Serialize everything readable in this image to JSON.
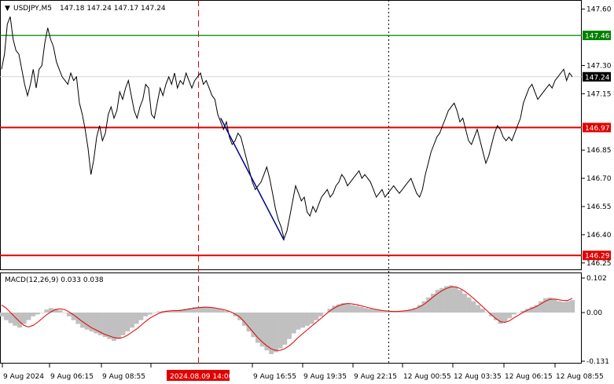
{
  "header": {
    "symbol": "USDJPY,M5",
    "ohlc": "147.18 147.24 147.17 147.24"
  },
  "macd_header": "MACD(12,26,9) 0.033 0.038",
  "colors": {
    "price_line": "#000000",
    "green_level": "#008000",
    "red_level": "#e00000",
    "trend_line": "#00008b",
    "macd_hist": "#c0c0c0",
    "macd_signal": "#e00000",
    "vline_dashed_red": "#e00000",
    "vline_dotted": "#000000",
    "current_tag_bg": "#000000"
  },
  "chart_data": [
    {
      "type": "line",
      "title": "USDJPY,M5",
      "ylim": [
        146.22,
        147.64
      ],
      "y_ticks": [
        "147.60",
        "147.30",
        "147.15",
        "146.85",
        "146.70",
        "146.55",
        "146.40",
        "146.25"
      ],
      "x_ticks": [
        "9 Aug 2024",
        "9 Aug 06:15",
        "9 Aug 08:55",
        "",
        "9 Aug 16:55",
        "9 Aug 19:35",
        "9 Aug 22:15",
        "12 Aug 00:55",
        "12 Aug 03:35",
        "12 Aug 06:15",
        "12 Aug 08:55"
      ],
      "x_ticks_note": "tick at 9 Aug 14:15 partly hidden by highlighted label",
      "highlight_label": "2024.08.09 14:00",
      "horizontal_levels": [
        {
          "value": 147.46,
          "label": "147.46",
          "color": "green"
        },
        {
          "value": 146.97,
          "label": "146.97",
          "color": "red"
        },
        {
          "value": 146.29,
          "label": "146.29",
          "color": "red"
        }
      ],
      "current_price": {
        "value": 147.24,
        "label": "147.24"
      },
      "series": [
        {
          "values": [
            147.28,
            147.36,
            147.52,
            147.56,
            147.44,
            147.38,
            147.36,
            147.28,
            147.2,
            147.14,
            147.2,
            147.28,
            147.18,
            147.28,
            147.3,
            147.42,
            147.5,
            147.44,
            147.4,
            147.32,
            147.28,
            147.24,
            147.22,
            147.2,
            147.26,
            147.22,
            147.24,
            147.1,
            147.04,
            146.96,
            146.86,
            146.72,
            146.8,
            146.92,
            146.98,
            146.9,
            146.94,
            147.04,
            147.08,
            147.02,
            147.06,
            147.16,
            147.12,
            147.18,
            147.22,
            147.14,
            147.06,
            147.02,
            147.08,
            147.12,
            147.2,
            147.18,
            147.04,
            147.02,
            147.1,
            147.18,
            147.14,
            147.2,
            147.24,
            147.2,
            147.26,
            147.18,
            147.22,
            147.2,
            147.26,
            147.22,
            147.18,
            147.22,
            147.24,
            147.26,
            147.2,
            147.22,
            147.18,
            147.14,
            147.12,
            147.04,
            147.0,
            146.96,
            147.0,
            146.92,
            146.88,
            146.9,
            146.94,
            146.92,
            146.86,
            146.8,
            146.74,
            146.68,
            146.64,
            146.66,
            146.68,
            146.72,
            146.76,
            146.7,
            146.62,
            146.54,
            146.48,
            146.44,
            146.38,
            146.42,
            146.5,
            146.58,
            146.66,
            146.62,
            146.58,
            146.6,
            146.52,
            146.5,
            146.55,
            146.52,
            146.56,
            146.6,
            146.62,
            146.64,
            146.6,
            146.62,
            146.66,
            146.68,
            146.72,
            146.7,
            146.66,
            146.68,
            146.7,
            146.72,
            146.74,
            146.7,
            146.72,
            146.7,
            146.68,
            146.64,
            146.6,
            146.62,
            146.64,
            146.6,
            146.62,
            146.64,
            146.66,
            146.64,
            146.62,
            146.64,
            146.66,
            146.68,
            146.7,
            146.66,
            146.62,
            146.6,
            146.64,
            146.72,
            146.78,
            146.84,
            146.88,
            146.92,
            146.94,
            146.98,
            147.02,
            147.06,
            147.08,
            147.1,
            147.06,
            147.0,
            147.02,
            146.96,
            146.9,
            146.88,
            146.92,
            146.96,
            146.9,
            146.84,
            146.78,
            146.82,
            146.88,
            146.94,
            146.98,
            146.96,
            146.92,
            146.9,
            146.92,
            146.9,
            146.94,
            146.98,
            147.02,
            147.1,
            147.14,
            147.18,
            147.2,
            147.16,
            147.12,
            147.14,
            147.16,
            147.18,
            147.2,
            147.18,
            147.22,
            147.24,
            147.26,
            147.28,
            147.22,
            147.26,
            147.24
          ],
          "note": "approximate M5 close path, 9 Aug 2024 to 12 Aug 08:55"
        }
      ],
      "trend_line": {
        "from": {
          "index": 76,
          "value": 147.02
        },
        "to": {
          "index": 98,
          "value": 146.37
        }
      }
    },
    {
      "type": "bar",
      "title": "MACD(12,26,9)",
      "ylim": [
        -0.131,
        0.102
      ],
      "y_ticks": [
        "0.102",
        "0.00",
        "-0.131"
      ],
      "series": [
        {
          "name": "MACD",
          "values": [
            -0.01,
            -0.02,
            -0.028,
            -0.035,
            -0.04,
            -0.03,
            -0.02,
            -0.01,
            -0.005,
            0.0,
            0.008,
            0.012,
            0.01,
            0.006,
            0.0,
            -0.01,
            -0.02,
            -0.03,
            -0.04,
            -0.045,
            -0.05,
            -0.055,
            -0.06,
            -0.065,
            -0.07,
            -0.075,
            -0.07,
            -0.06,
            -0.05,
            -0.04,
            -0.03,
            -0.02,
            -0.01,
            -0.005,
            0.0,
            0.003,
            0.004,
            0.005,
            0.004,
            0.006,
            0.008,
            0.01,
            0.012,
            0.014,
            0.015,
            0.016,
            0.015,
            0.012,
            0.01,
            0.008,
            0.004,
            0.0,
            -0.01,
            -0.02,
            -0.035,
            -0.05,
            -0.065,
            -0.08,
            -0.09,
            -0.1,
            -0.11,
            -0.105,
            -0.095,
            -0.085,
            -0.07,
            -0.055,
            -0.045,
            -0.04,
            -0.035,
            -0.03,
            -0.02,
            -0.01,
            0.0,
            0.01,
            0.018,
            0.022,
            0.025,
            0.024,
            0.02,
            0.018,
            0.015,
            0.012,
            0.01,
            0.008,
            0.006,
            0.004,
            0.003,
            0.002,
            0.003,
            0.004,
            0.005,
            0.008,
            0.012,
            0.02,
            0.03,
            0.04,
            0.05,
            0.06,
            0.065,
            0.07,
            0.072,
            0.068,
            0.06,
            0.05,
            0.04,
            0.03,
            0.02,
            0.01,
            0.0,
            -0.01,
            -0.02,
            -0.03,
            -0.025,
            -0.015,
            -0.005,
            0.0,
            0.005,
            0.01,
            0.015,
            0.02,
            0.03,
            0.038,
            0.04,
            0.036,
            0.03,
            0.028,
            0.03,
            0.033
          ]
        },
        {
          "name": "Signal",
          "values": [
            0.02,
            0.012,
            0.0,
            -0.012,
            -0.024,
            -0.034,
            -0.038,
            -0.034,
            -0.026,
            -0.016,
            -0.006,
            0.002,
            0.008,
            0.01,
            0.008,
            0.002,
            -0.006,
            -0.015,
            -0.024,
            -0.032,
            -0.04,
            -0.046,
            -0.052,
            -0.058,
            -0.062,
            -0.066,
            -0.068,
            -0.066,
            -0.06,
            -0.052,
            -0.044,
            -0.034,
            -0.024,
            -0.015,
            -0.008,
            -0.002,
            0.002,
            0.004,
            0.005,
            0.005,
            0.006,
            0.008,
            0.01,
            0.012,
            0.013,
            0.014,
            0.014,
            0.013,
            0.011,
            0.009,
            0.006,
            0.002,
            -0.004,
            -0.012,
            -0.024,
            -0.038,
            -0.052,
            -0.066,
            -0.078,
            -0.088,
            -0.096,
            -0.1,
            -0.1,
            -0.096,
            -0.088,
            -0.078,
            -0.066,
            -0.056,
            -0.046,
            -0.036,
            -0.026,
            -0.016,
            -0.006,
            0.004,
            0.012,
            0.018,
            0.022,
            0.024,
            0.023,
            0.021,
            0.018,
            0.015,
            0.012,
            0.009,
            0.007,
            0.005,
            0.004,
            0.003,
            0.003,
            0.004,
            0.005,
            0.007,
            0.01,
            0.015,
            0.022,
            0.031,
            0.041,
            0.05,
            0.058,
            0.064,
            0.068,
            0.068,
            0.064,
            0.057,
            0.048,
            0.038,
            0.027,
            0.016,
            0.005,
            -0.006,
            -0.016,
            -0.024,
            -0.026,
            -0.022,
            -0.014,
            -0.007,
            0.0,
            0.006,
            0.011,
            0.016,
            0.023,
            0.03,
            0.035,
            0.036,
            0.034,
            0.032,
            0.032,
            0.038
          ]
        }
      ],
      "histogram_color": "#c0c0c0",
      "signal_color": "#e00000"
    }
  ]
}
